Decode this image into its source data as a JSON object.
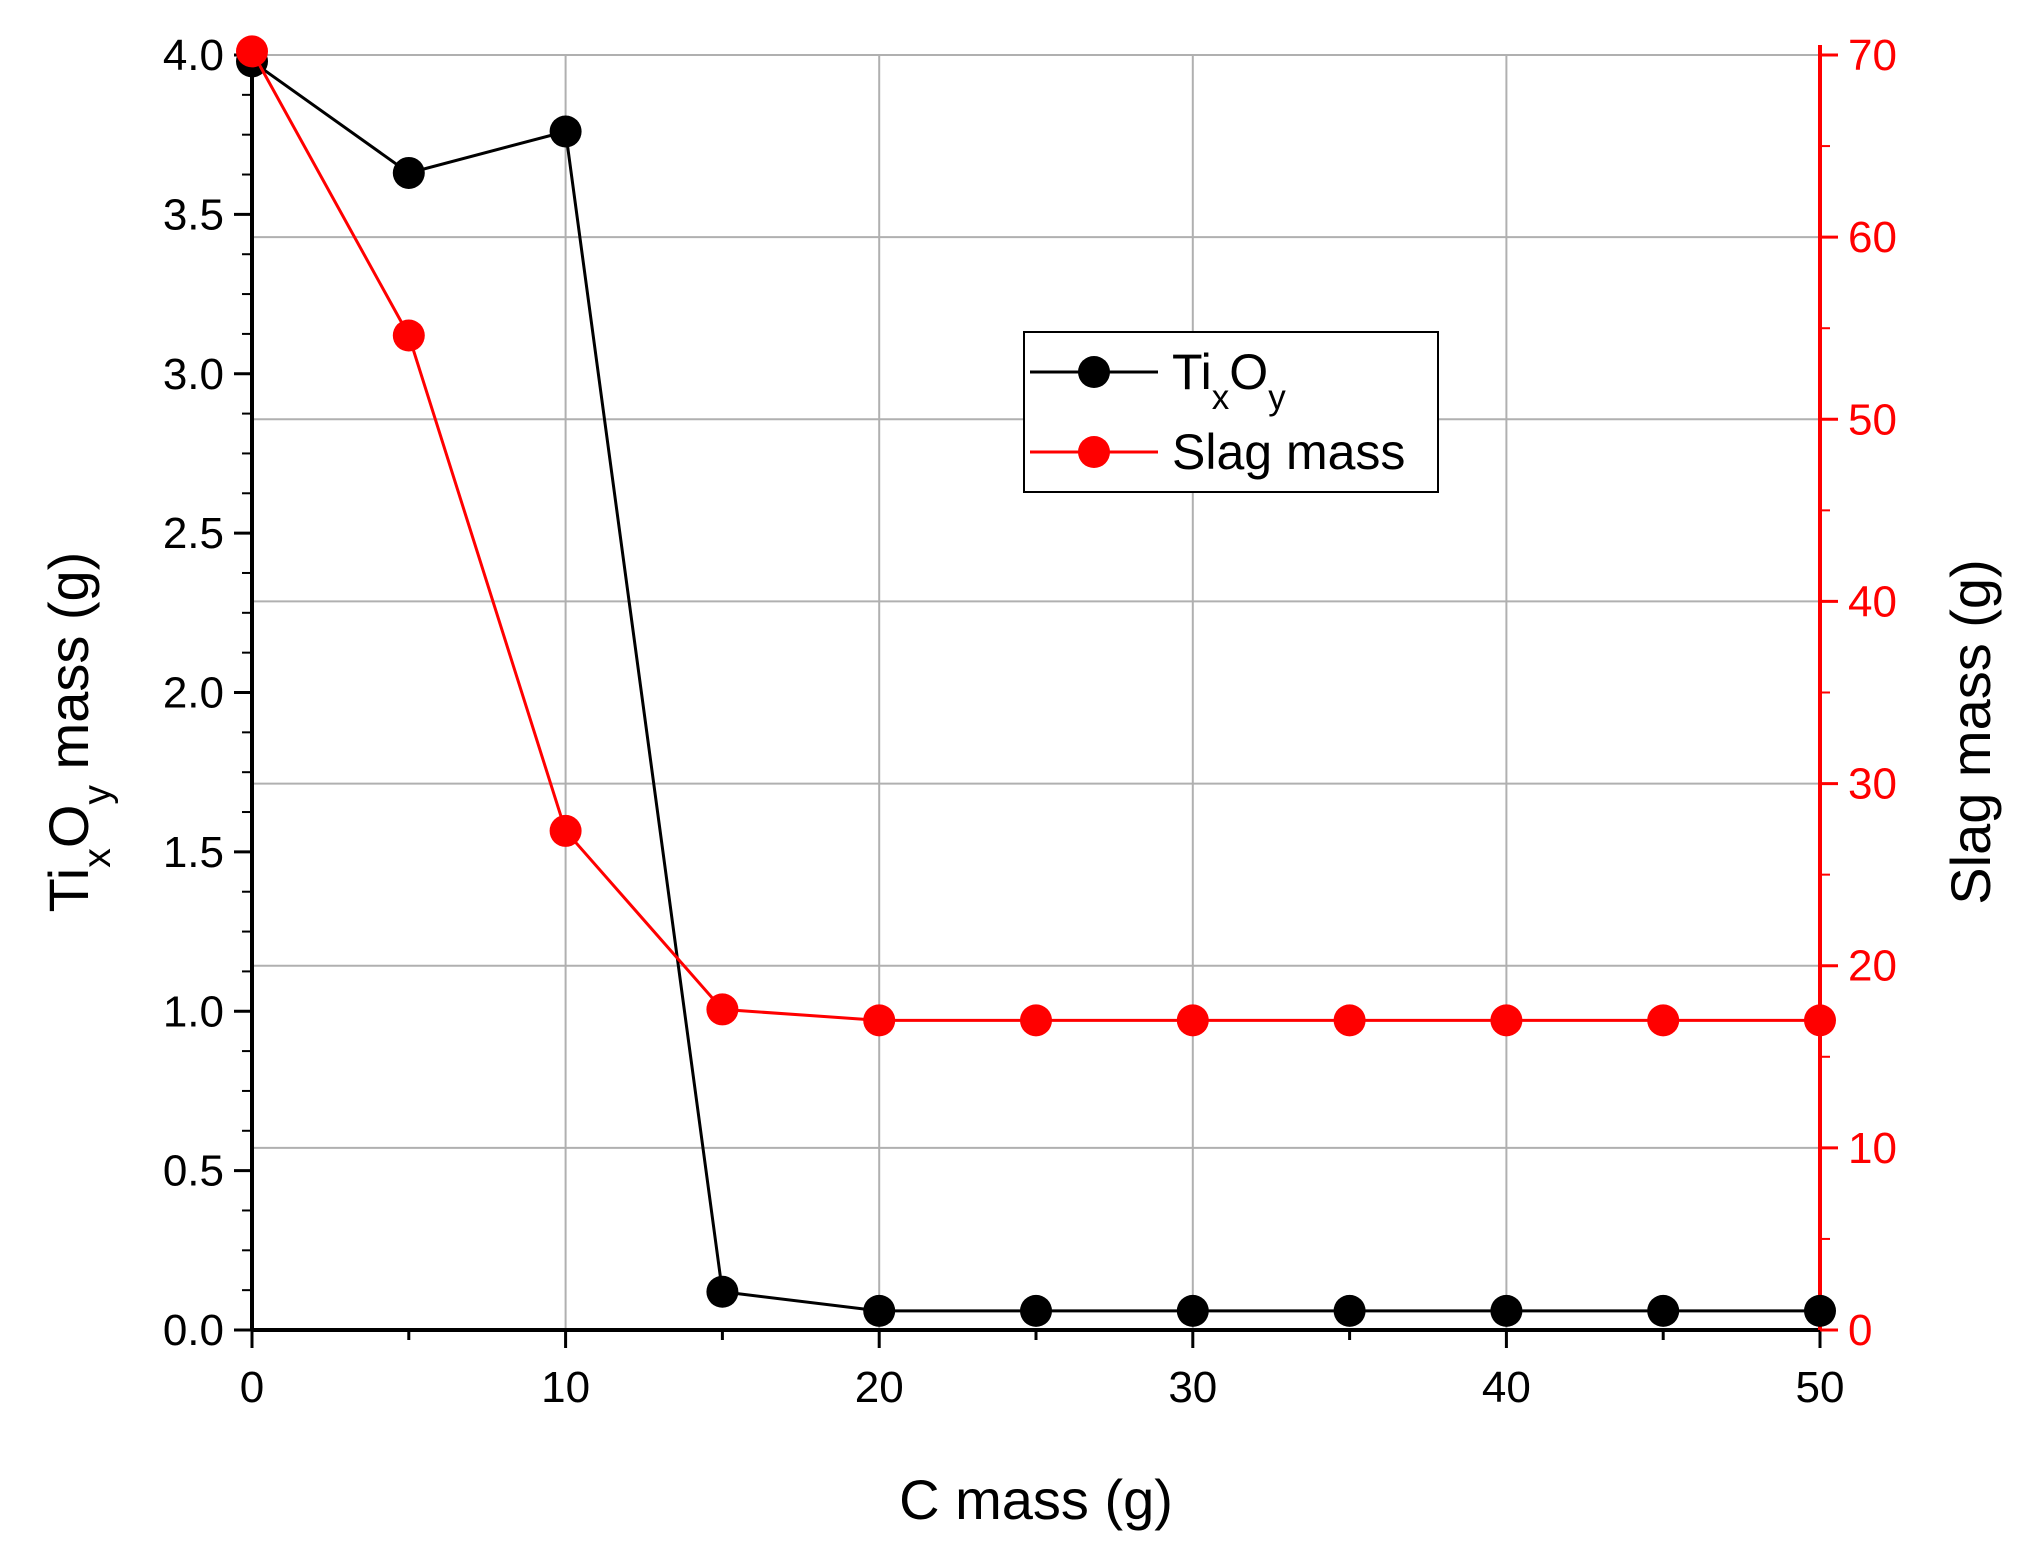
{
  "chart_data": {
    "type": "line",
    "title": "",
    "xlabel": "C mass (g)",
    "ylabel_left": {
      "parts": [
        {
          "text": "Ti",
          "shift": "none"
        },
        {
          "text": "x",
          "shift": "sub"
        },
        {
          "text": "O",
          "shift": "none"
        },
        {
          "text": "y",
          "shift": "sub"
        },
        {
          "text": " mass (g)",
          "shift": "none"
        }
      ]
    },
    "ylabel_right": "Slag mass (g)",
    "xlim": [
      0,
      50
    ],
    "ylim_left": [
      0,
      4.0
    ],
    "ylim_right": [
      0,
      70
    ],
    "x_ticks": [
      "0",
      "10",
      "20",
      "30",
      "40",
      "50"
    ],
    "y_left_ticks": [
      "0.0",
      "0.5",
      "1.0",
      "1.5",
      "2.0",
      "2.5",
      "3.0",
      "3.5",
      "4.0"
    ],
    "y_right_ticks": [
      "0",
      "10",
      "20",
      "30",
      "40",
      "50",
      "60",
      "70"
    ],
    "grid": true,
    "legend_position": "upper-center",
    "series": [
      {
        "name": "TixOy",
        "legend_parts": [
          {
            "text": "Ti",
            "shift": "none"
          },
          {
            "text": "x",
            "shift": "sub"
          },
          {
            "text": "O",
            "shift": "none"
          },
          {
            "text": "y",
            "shift": "sub"
          }
        ],
        "axis": "left",
        "color": "#000000",
        "x": [
          0,
          5,
          10,
          15,
          20,
          25,
          30,
          35,
          40,
          45,
          50
        ],
        "values": [
          3.98,
          3.63,
          3.76,
          0.12,
          0.06,
          0.06,
          0.06,
          0.06,
          0.06,
          0.06,
          0.06
        ]
      },
      {
        "name": "Slag mass",
        "legend_parts": [
          {
            "text": "Slag mass",
            "shift": "none"
          }
        ],
        "axis": "right",
        "color": "#ff0000",
        "x": [
          0,
          5,
          10,
          15,
          20,
          25,
          30,
          35,
          40,
          45,
          50
        ],
        "values": [
          70.2,
          54.6,
          27.4,
          17.6,
          17.0,
          17.0,
          17.0,
          17.0,
          17.0,
          17.0,
          17.0
        ]
      }
    ]
  }
}
